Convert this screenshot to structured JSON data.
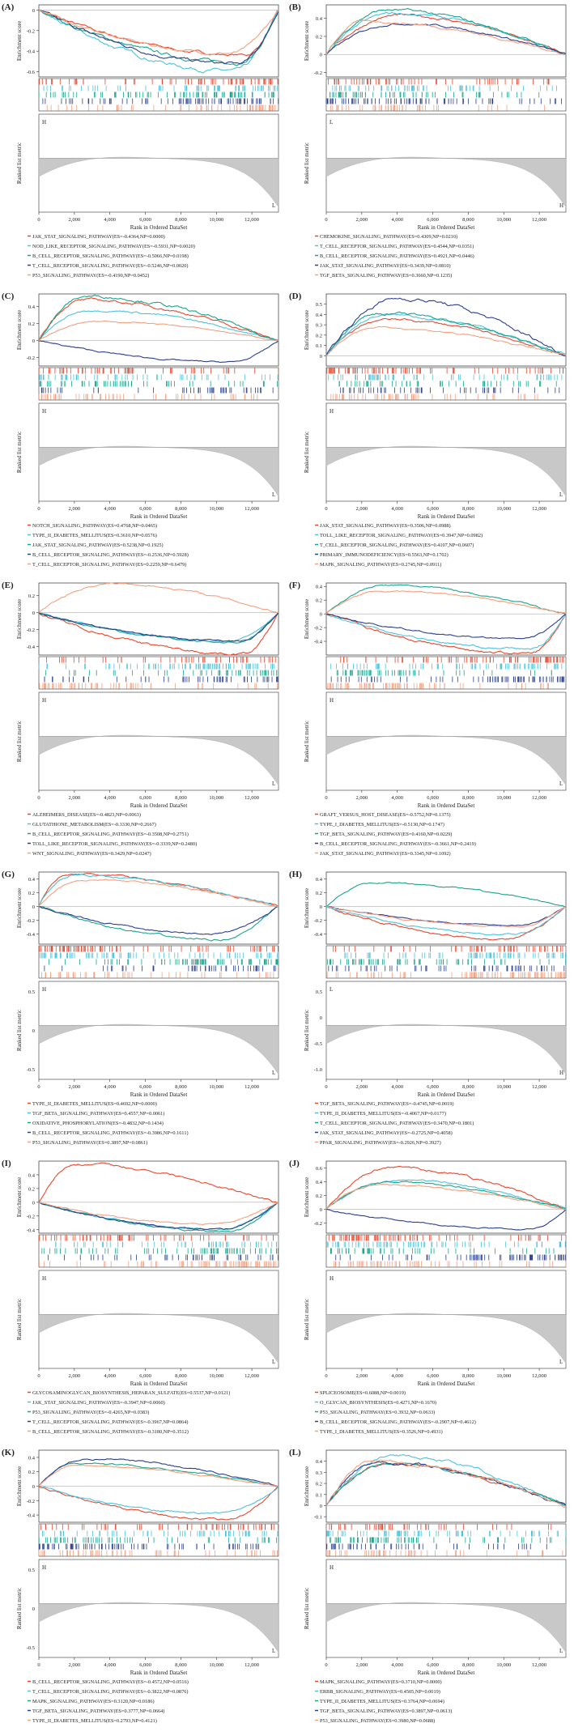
{
  "colors": [
    "#e8472e",
    "#4cc3da",
    "#17a58c",
    "#2b3f8f",
    "#f4a07f"
  ],
  "axis": {
    "xlabel": "Rank in Ordered DataSet",
    "ylabel_top": "Enrichment score",
    "ylabel_bottom": "Ranked list metric",
    "xmax": 13500,
    "xticks": [
      0,
      2000,
      4000,
      6000,
      8000,
      10000,
      12000
    ],
    "xtick_labels": [
      "0",
      "2,000",
      "4,000",
      "6,000",
      "8,000",
      "10,000",
      "12,000"
    ]
  },
  "panels": [
    {
      "label": "(A)",
      "ylim": [
        -0.65,
        0.05
      ],
      "yticks": [
        0,
        -0.2,
        -0.4,
        -0.6
      ],
      "hl": [
        "H",
        "L"
      ],
      "series": [
        {
          "name": "JAK_STAT_SIGNALING_PATHWAY",
          "es": "-0.4364",
          "np": "0.0000",
          "peak": 0.86
        },
        {
          "name": "NOD_LIKE_RECEPTOR_SIGNALING_PATHWAY",
          "es": "-0.5931",
          "np": "0.0020",
          "peak": 0.82
        },
        {
          "name": "B_CELL_RECEPTOR_SIGNALING_PATHWAY",
          "es": "-0.5066",
          "np": "0.0198",
          "peak": 0.84
        },
        {
          "name": "T_CELL_RECEPTOR_SIGNALING_PATHWAY",
          "es": "-0.5246",
          "np": "0.0020",
          "peak": 0.83
        },
        {
          "name": "P53_SIGNALING_PATHWAY",
          "es": "-0.4190",
          "np": "0.0452",
          "peak": 0.8
        }
      ]
    },
    {
      "label": "(B)",
      "ylim": [
        -0.25,
        0.55
      ],
      "yticks": [
        0.4,
        0.2,
        0,
        -0.2
      ],
      "hl": [
        "L",
        "H"
      ],
      "series": [
        {
          "name": "CHEMOKINE_SIGNALING_PATHWAY",
          "es": "0.4309",
          "np": "0.0210",
          "peak": 0.3
        },
        {
          "name": "T_CELL_RECEPTOR_SIGNALING_PATHWAY",
          "es": "0.4544",
          "np": "0.0351",
          "peak": 0.28
        },
        {
          "name": "B_CELL_RECEPTOR_SIGNALING_PATHWAY",
          "es": "0.4921",
          "np": "0.0446",
          "peak": 0.25
        },
        {
          "name": "JAK_STAT_SIGNALING_PATHWAY",
          "es": "0.3439",
          "np": "0.0810",
          "peak": 0.3
        },
        {
          "name": "TGF_BETA_SIGNALING_PATHWAY",
          "es": "0.3660",
          "np": "0.1235",
          "peak": 0.15
        }
      ]
    },
    {
      "label": "(C)",
      "ylim": [
        -0.3,
        0.55
      ],
      "yticks": [
        0.4,
        0.2,
        0,
        -0.2
      ],
      "hl": [
        "H",
        "L"
      ],
      "series": [
        {
          "name": "NOTCH_SIGNALING_PATHWAY",
          "es": "0.4768",
          "np": "0.0465",
          "peak": 0.18
        },
        {
          "name": "TYPE_II_DIABETES_MELLITUS",
          "es": "0.3610",
          "np": "0.0576",
          "peak": 0.22
        },
        {
          "name": "JAK_STAT_SIGNALING_PATHWAY",
          "es": "0.5238",
          "np": "0.1925",
          "peak": 0.2
        },
        {
          "name": "B_CELL_RECEPTOR_SIGNALING_PATHWAY",
          "es": "-0.2536",
          "np": "0.5928",
          "peak": 0.8
        },
        {
          "name": "T_CELL_RECEPTOR_SIGNALING_PATHWAY",
          "es": "0.2259",
          "np": "0.6479",
          "peak": 0.25
        }
      ]
    },
    {
      "label": "(D)",
      "ylim": [
        -0.1,
        0.6
      ],
      "yticks": [
        0.5,
        0.4,
        0.3,
        0.2,
        0.1,
        0
      ],
      "hl": [
        "H",
        "L"
      ],
      "series": [
        {
          "name": "JAK_STAT_SIGNALING_PATHWAY",
          "es": "0.3506",
          "np": "0.0988",
          "peak": 0.25
        },
        {
          "name": "TOLL_LIKE_RECEPTOR_SIGNALING_PATHWAY",
          "es": "0.3947",
          "np": "0.0982",
          "peak": 0.25
        },
        {
          "name": "T_CELL_RECEPTOR_SIGNALING_PATHWAY",
          "es": "0.4107",
          "np": "0.0607",
          "peak": 0.22
        },
        {
          "name": "PRIMARY_IMMUNODEFICIENCY",
          "es": "0.5563",
          "np": "0.1702",
          "peak": 0.3
        },
        {
          "name": "MAPK_SIGNALING_PATHWAY",
          "es": "0.2745",
          "np": "0.0911",
          "peak": 0.2
        }
      ]
    },
    {
      "label": "(E)",
      "ylim": [
        -0.5,
        0.35
      ],
      "yticks": [
        0.2,
        0,
        -0.2,
        -0.4
      ],
      "hl": [
        "H",
        "L"
      ],
      "series": [
        {
          "name": "ALZHEIMERS_DISEASE",
          "es": "-0.4823",
          "np": "0.0063",
          "peak": 0.85
        },
        {
          "name": "GLUTATHIONE_METABOLISM",
          "es": "-0.3330",
          "np": "0.2667",
          "peak": 0.8
        },
        {
          "name": "B_CELL_RECEPTOR_SIGNALING_PATHWAY",
          "es": "-0.3508",
          "np": "0.2751",
          "peak": 0.82
        },
        {
          "name": "TOLL_LIKE_RECEPTOR_SIGNALING_PATHWAY",
          "es": "-0.3339",
          "np": "0.2480",
          "peak": 0.84
        },
        {
          "name": "WNT_SIGNALING_PATHWAY",
          "es": "0.3429",
          "np": "0.0247",
          "peak": 0.3
        }
      ]
    },
    {
      "label": "(F)",
      "ylim": [
        -0.6,
        0.45
      ],
      "yticks": [
        0.4,
        0.2,
        0,
        -0.2,
        -0.4
      ],
      "hl": [
        "H",
        "L"
      ],
      "series": [
        {
          "name": "GRAFT_VERSUS_HOST_DISEASE",
          "es": "-0.5752",
          "np": "0.1375",
          "peak": 0.85
        },
        {
          "name": "TYPE_I_DIABETES_MELLITUS",
          "es": "-0.5130",
          "np": "0.1747",
          "peak": 0.85
        },
        {
          "name": "TGF_BETA_SIGNALING_PATHWAY",
          "es": "0.4160",
          "np": "0.0229",
          "peak": 0.25
        },
        {
          "name": "B_CELL_RECEPTOR_SIGNALING_PATHWAY",
          "es": "-0.3661",
          "np": "0.2419",
          "peak": 0.82
        },
        {
          "name": "JAK_STAT_SIGNALING_PATHWAY",
          "es": "0.3345",
          "np": "0.1092",
          "peak": 0.25
        }
      ]
    },
    {
      "label": "(G)",
      "ylim": [
        -0.55,
        0.5
      ],
      "yticks": [
        0.4,
        0.2,
        0,
        -0.2,
        -0.4
      ],
      "hl": [
        "H",
        "L"
      ],
      "rankticks": [
        "0.5",
        "0",
        "-0.5"
      ],
      "series": [
        {
          "name": "TYPE_II_DIABETES_MELLITUS",
          "es": "0.4692",
          "np": "0.0000",
          "peak": 0.12
        },
        {
          "name": "TGF_BETA_SIGNALING_PATHWAY",
          "es": "0.4557",
          "np": "0.0061",
          "peak": 0.15
        },
        {
          "name": "OXIDATIVE_PHOSPHORYLATION",
          "es": "-0.4832",
          "np": "0.1434",
          "peak": 0.75
        },
        {
          "name": "B_CELL_RECEPTOR_SIGNALING_PATHWAY",
          "es": "-0.3986",
          "np": "0.1611",
          "peak": 0.72
        },
        {
          "name": "P53_SIGNALING_PATHWAY",
          "es": "0.3897",
          "np": "0.0861",
          "peak": 0.18
        }
      ]
    },
    {
      "label": "(H)",
      "ylim": [
        -0.55,
        0.5
      ],
      "yticks": [
        0.4,
        0.2,
        0,
        -0.2,
        -0.4
      ],
      "hl": [
        "L",
        "H"
      ],
      "rankticks": [
        "0.5",
        "0",
        "-0.5",
        "-1.0"
      ],
      "series": [
        {
          "name": "TGF_BETA_SIGNALING_PATHWAY",
          "es": "-0.4745",
          "np": "0.0019",
          "peak": 0.75
        },
        {
          "name": "TYPE_II_DIABETES_MELLITUS",
          "es": "-0.4067",
          "np": "0.0177",
          "peak": 0.78
        },
        {
          "name": "T_CELL_RECEPTOR_SIGNALING_PATHWAY",
          "es": "0.3470",
          "np": "0.1801",
          "peak": 0.2
        },
        {
          "name": "JAK_STAT_SIGNALING_PATHWAY",
          "es": "-0.2725",
          "np": "0.4058",
          "peak": 0.8
        },
        {
          "name": "PPAR_SIGNALING_PATHWAY",
          "es": "-0.2926",
          "np": "0.3927",
          "peak": 0.8
        }
      ]
    },
    {
      "label": "(I)",
      "ylim": [
        -0.45,
        0.6
      ],
      "yticks": [
        0.4,
        0.2,
        0,
        -0.2,
        -0.4
      ],
      "hl": [
        "H",
        "L"
      ],
      "series": [
        {
          "name": "GLYCOSAMINOGLYCAN_BIOSYNTHESIS_HEPARAN_SULFATE",
          "es": "0.5537",
          "np": "0.0121",
          "peak": 0.15
        },
        {
          "name": "JAK_STAT_SIGNALING_PATHWAY",
          "es": "-0.3947",
          "np": "0.0060",
          "peak": 0.75
        },
        {
          "name": "P53_SIGNALING_PATHWAY",
          "es": "-0.4265",
          "np": "0.0383",
          "peak": 0.78
        },
        {
          "name": "T_CELL_RECEPTOR_SIGNALING_PATHWAY",
          "es": "-0.3967",
          "np": "0.0864",
          "peak": 0.75
        },
        {
          "name": "B_CELL_RECEPTOR_SIGNALING_PATHWAY",
          "es": "-0.3180",
          "np": "0.3512",
          "peak": 0.72
        }
      ]
    },
    {
      "label": "(J)",
      "ylim": [
        -0.35,
        0.7
      ],
      "yticks": [
        0.6,
        0.4,
        0.2,
        0,
        -0.2
      ],
      "hl": [
        "H",
        "L"
      ],
      "series": [
        {
          "name": "SPLICEOSOME",
          "es": "0.6088",
          "np": "0.0019",
          "peak": 0.28
        },
        {
          "name": "O_GLYCAN_BIOSYNTHESIS",
          "es": "0.4271",
          "np": "0.1670",
          "peak": 0.3
        },
        {
          "name": "P53_SIGNALING_PATHWAY",
          "es": "0.3932",
          "np": "0.0633",
          "peak": 0.25
        },
        {
          "name": "B_CELL_RECEPTOR_SIGNALING_PATHWAY",
          "es": "-0.2907",
          "np": "0.4612",
          "peak": 0.85
        },
        {
          "name": "TYPE_I_DIABETES_MELLITUS",
          "es": "0.3526",
          "np": "0.4931",
          "peak": 0.22
        }
      ]
    },
    {
      "label": "(K)",
      "ylim": [
        -0.5,
        0.5
      ],
      "yticks": [
        0.4,
        0.2,
        0,
        -0.2,
        -0.4
      ],
      "hl": [
        "H",
        "L"
      ],
      "rankticks": [
        "0.5",
        "0",
        "-0.5"
      ],
      "series": [
        {
          "name": "B_CELL_RECEPTOR_SIGNALING_PATHWAY",
          "es": "-0.4572",
          "np": "0.0516",
          "peak": 0.78
        },
        {
          "name": "T_CELL_RECEPTOR_SIGNALING_PATHWAY",
          "es": "-0.3822",
          "np": "0.0876",
          "peak": 0.75
        },
        {
          "name": "MAPK_SIGNALING_PATHWAY",
          "es": "0.3120",
          "np": "0.0186",
          "peak": 0.15
        },
        {
          "name": "TGF_BETA_SIGNALING_PATHWAY",
          "es": "0.3777",
          "np": "0.0664",
          "peak": 0.2
        },
        {
          "name": "TYPE_II_DIABETES_MELLITUS",
          "es": "0.2793",
          "np": "0.4121",
          "peak": 0.15
        }
      ]
    },
    {
      "label": "(L)",
      "ylim": [
        -0.15,
        0.5
      ],
      "yticks": [
        0.4,
        0.3,
        0.2,
        0.1,
        0,
        -0.1
      ],
      "hl": [
        "H",
        "L"
      ],
      "series": [
        {
          "name": "MAPK_SIGNALING_PATHWAY",
          "es": "0.3710",
          "np": "0.0000",
          "peak": 0.25
        },
        {
          "name": "ERBB_SIGNALING_PATHWAY",
          "es": "0.4505",
          "np": "0.0019",
          "peak": 0.28
        },
        {
          "name": "TYPE_II_DIABETES_MELLITUS",
          "es": "0.3764",
          "np": "0.0694",
          "peak": 0.25
        },
        {
          "name": "TGF_BETA_SIGNALING_PATHWAY",
          "es": "0.3897",
          "np": "0.0613",
          "peak": 0.22
        },
        {
          "name": "P53_SIGNALING_PATHWAY",
          "es": "0.3980",
          "np": "0.0688",
          "peak": 0.2
        }
      ]
    }
  ]
}
